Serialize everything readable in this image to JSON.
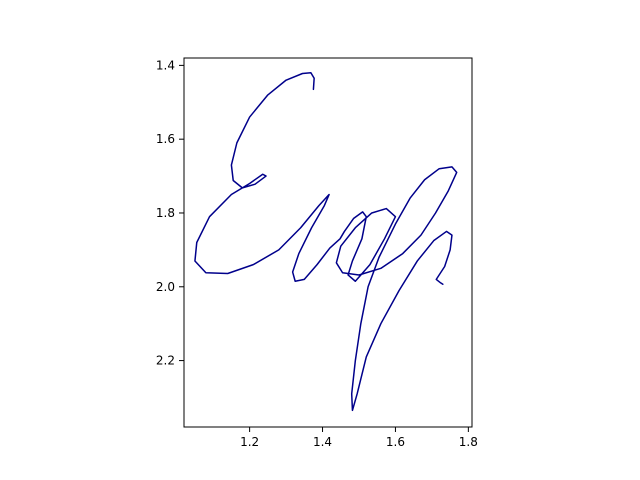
{
  "chart_data": {
    "type": "line",
    "title": "",
    "xlabel": "",
    "ylabel": "",
    "xlim": [
      1.02,
      1.81
    ],
    "ylim": [
      2.38,
      1.38
    ],
    "y_inverted": true,
    "grid": false,
    "x_ticks": [
      {
        "value": 1.2,
        "label": "1.2"
      },
      {
        "value": 1.4,
        "label": "1.4"
      },
      {
        "value": 1.6,
        "label": "1.6"
      },
      {
        "value": 1.8,
        "label": "1.8"
      }
    ],
    "y_ticks": [
      {
        "value": 1.4,
        "label": "1.4"
      },
      {
        "value": 1.6,
        "label": "1.6"
      },
      {
        "value": 1.8,
        "label": "1.8"
      },
      {
        "value": 2.0,
        "label": "2.0"
      },
      {
        "value": 2.2,
        "label": "2.2"
      }
    ],
    "series": [
      {
        "color": "#00008b",
        "points": [
          [
            1.375,
            1.465
          ],
          [
            1.377,
            1.435
          ],
          [
            1.368,
            1.42
          ],
          [
            1.345,
            1.422
          ],
          [
            1.3,
            1.44
          ],
          [
            1.25,
            1.48
          ],
          [
            1.2,
            1.54
          ],
          [
            1.165,
            1.61
          ],
          [
            1.15,
            1.67
          ],
          [
            1.155,
            1.712
          ],
          [
            1.18,
            1.732
          ],
          [
            1.215,
            1.722
          ],
          [
            1.245,
            1.7
          ],
          [
            1.236,
            1.695
          ],
          [
            1.2,
            1.72
          ],
          [
            1.15,
            1.75
          ],
          [
            1.09,
            1.81
          ],
          [
            1.055,
            1.88
          ],
          [
            1.05,
            1.93
          ],
          [
            1.08,
            1.962
          ],
          [
            1.14,
            1.964
          ],
          [
            1.21,
            1.94
          ],
          [
            1.28,
            1.9
          ],
          [
            1.34,
            1.84
          ],
          [
            1.39,
            1.78
          ],
          [
            1.418,
            1.75
          ],
          [
            1.405,
            1.78
          ],
          [
            1.37,
            1.84
          ],
          [
            1.335,
            1.91
          ],
          [
            1.318,
            1.96
          ],
          [
            1.325,
            1.985
          ],
          [
            1.35,
            1.98
          ],
          [
            1.385,
            1.94
          ],
          [
            1.42,
            1.895
          ],
          [
            1.448,
            1.87
          ],
          [
            1.46,
            1.85
          ],
          [
            1.485,
            1.815
          ],
          [
            1.51,
            1.797
          ],
          [
            1.52,
            1.81
          ],
          [
            1.508,
            1.87
          ],
          [
            1.482,
            1.93
          ],
          [
            1.47,
            1.968
          ],
          [
            1.49,
            1.985
          ],
          [
            1.53,
            1.94
          ],
          [
            1.57,
            1.87
          ],
          [
            1.6,
            1.81
          ],
          [
            1.575,
            1.788
          ],
          [
            1.535,
            1.8
          ],
          [
            1.49,
            1.84
          ],
          [
            1.45,
            1.89
          ],
          [
            1.438,
            1.935
          ],
          [
            1.455,
            1.962
          ],
          [
            1.5,
            1.968
          ],
          [
            1.56,
            1.95
          ],
          [
            1.62,
            1.91
          ],
          [
            1.67,
            1.86
          ],
          [
            1.71,
            1.8
          ],
          [
            1.745,
            1.74
          ],
          [
            1.768,
            1.69
          ],
          [
            1.755,
            1.675
          ],
          [
            1.72,
            1.68
          ],
          [
            1.68,
            1.71
          ],
          [
            1.64,
            1.76
          ],
          [
            1.6,
            1.83
          ],
          [
            1.555,
            1.92
          ],
          [
            1.525,
            2.0
          ],
          [
            1.505,
            2.1
          ],
          [
            1.49,
            2.2
          ],
          [
            1.48,
            2.29
          ],
          [
            1.482,
            2.335
          ],
          [
            1.495,
            2.29
          ],
          [
            1.52,
            2.19
          ],
          [
            1.56,
            2.1
          ],
          [
            1.61,
            2.01
          ],
          [
            1.66,
            1.93
          ],
          [
            1.705,
            1.875
          ],
          [
            1.74,
            1.85
          ],
          [
            1.755,
            1.86
          ],
          [
            1.75,
            1.9
          ],
          [
            1.735,
            1.945
          ],
          [
            1.712,
            1.98
          ],
          [
            1.722,
            1.988
          ],
          [
            1.73,
            1.993
          ]
        ]
      }
    ]
  }
}
